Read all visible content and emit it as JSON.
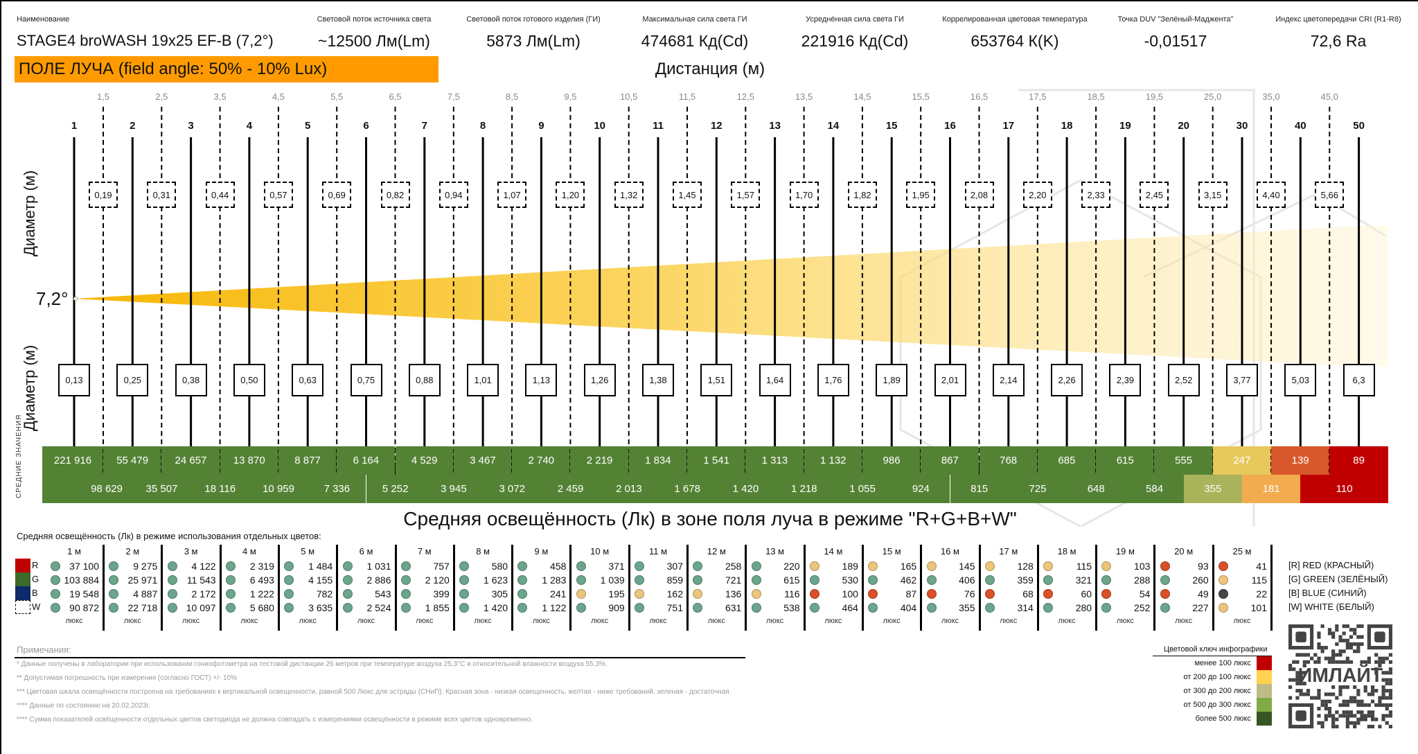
{
  "header": {
    "columns": [
      {
        "label": "Наименование",
        "value": "STAGE4 broWASH 19x25 EF-B (7,2°)"
      },
      {
        "label": "Световой поток источника света",
        "value": "~12500 Лм(Lm)"
      },
      {
        "label": "Световой поток готового изделия (ГИ)",
        "value": "5873 Лм(Lm)"
      },
      {
        "label": "Максимальная сила света ГИ",
        "value": "474681 Кд(Cd)"
      },
      {
        "label": "Усреднённая сила света ГИ",
        "value": "221916 Кд(Cd)"
      },
      {
        "label": "Коррелированная цветовая температура",
        "value": "653764 К(K)"
      },
      {
        "label": "Точка DUV \"Зелёный-Маджента\"",
        "value": "-0,01517"
      },
      {
        "label": "Индекс цветопередачи CRI (R1-R8)",
        "value": "72,6 Ra"
      }
    ]
  },
  "banner": "ПОЛЕ ЛУЧА (field angle: 50% - 10% Lux)",
  "distance_title": "Дистанция (м)",
  "beam_angle": "7,2°",
  "diameter_label": "Диаметр (м)",
  "distances_main": [
    "1",
    "2",
    "3",
    "4",
    "5",
    "6",
    "7",
    "8",
    "9",
    "10",
    "11",
    "12",
    "13",
    "14",
    "15",
    "16",
    "17",
    "18",
    "19",
    "20",
    "30",
    "40",
    "50"
  ],
  "distances_mid": [
    "1,5",
    "2,5",
    "3,5",
    "4,5",
    "5,5",
    "6,5",
    "7,5",
    "8,5",
    "9,5",
    "10,5",
    "11,5",
    "12,5",
    "13,5",
    "14,5",
    "15,5",
    "16,5",
    "17,5",
    "18,5",
    "19,5",
    "25,0",
    "35,0",
    "45,0"
  ],
  "diameters_mid": [
    "0,19",
    "0,31",
    "0,44",
    "0,57",
    "0,69",
    "0,82",
    "0,94",
    "1,07",
    "1,20",
    "1,32",
    "1,45",
    "1,57",
    "1,70",
    "1,82",
    "1,95",
    "2,08",
    "2,20",
    "2,33",
    "2,45",
    "3,15",
    "4,40",
    "5,66"
  ],
  "diameters_main": [
    "0,13",
    "0,25",
    "0,38",
    "0,50",
    "0,63",
    "0,75",
    "0,88",
    "1,01",
    "1,13",
    "1,26",
    "1,38",
    "1,51",
    "1,64",
    "1,76",
    "1,89",
    "2,01",
    "2,14",
    "2,26",
    "2,39",
    "2,52",
    "3,77",
    "5,03",
    "6,3"
  ],
  "avg_label": "СРЕДНИЕ ЗНАЧЕНИЯ",
  "avg_main": [
    "221 916",
    "55 479",
    "24 657",
    "13 870",
    "8 877",
    "6 164",
    "4 529",
    "3 467",
    "2 740",
    "2 219",
    "1 834",
    "1 541",
    "1 313",
    "1 132",
    "986",
    "867",
    "768",
    "685",
    "615",
    "555",
    "247",
    "139",
    "89"
  ],
  "avg_main_colors": [
    "g",
    "g",
    "g",
    "g",
    "g",
    "g",
    "g",
    "g",
    "g",
    "g",
    "g",
    "g",
    "g",
    "g",
    "g",
    "g",
    "g",
    "g",
    "g",
    "g",
    "y",
    "o",
    "r"
  ],
  "avg_mid": [
    "98 629",
    "35 507",
    "18 116",
    "10 959",
    "7 336",
    "5 252",
    "3 945",
    "3 072",
    "2 459",
    "2 013",
    "1 678",
    "1 420",
    "1 218",
    "1 055",
    "924",
    "815",
    "725",
    "648",
    "584",
    "355",
    "181",
    "110"
  ],
  "avg_mid_colors": [
    "g",
    "g",
    "g",
    "g",
    "g",
    "g",
    "g",
    "g",
    "g",
    "g",
    "g",
    "g",
    "g",
    "g",
    "g",
    "g",
    "g",
    "g",
    "g",
    "l",
    "a",
    "r"
  ],
  "bar_colors": {
    "g": "#548235",
    "y": "#e6c85c",
    "o": "#d9582b",
    "r": "#c00000",
    "l": "#a9b35a",
    "a": "#f2ab4f"
  },
  "subtitle": "Средняя освещённость (Лк) в зоне поля луча в режиме \"R+G+B+W\"",
  "table": {
    "title": "Средняя освещённость (Лк) в режиме использования отдельных цветов:",
    "row_keys": [
      "R",
      "G",
      "B",
      "W"
    ],
    "unit": "люкс",
    "dot_colors": {
      "g": "#6aa58c",
      "y": "#ecc47c",
      "r": "#d9502a",
      "d": "#454545"
    },
    "columns": [
      {
        "d": "1 м",
        "v": [
          "37 100",
          "103 884",
          "19 548",
          "90 872"
        ],
        "c": [
          "g",
          "g",
          "g",
          "g"
        ]
      },
      {
        "d": "2 м",
        "v": [
          "9 275",
          "25 971",
          "4 887",
          "22 718"
        ],
        "c": [
          "g",
          "g",
          "g",
          "g"
        ]
      },
      {
        "d": "3 м",
        "v": [
          "4 122",
          "11 543",
          "2 172",
          "10 097"
        ],
        "c": [
          "g",
          "g",
          "g",
          "g"
        ]
      },
      {
        "d": "4 м",
        "v": [
          "2 319",
          "6 493",
          "1 222",
          "5 680"
        ],
        "c": [
          "g",
          "g",
          "g",
          "g"
        ]
      },
      {
        "d": "5 м",
        "v": [
          "1 484",
          "4 155",
          "782",
          "3 635"
        ],
        "c": [
          "g",
          "g",
          "g",
          "g"
        ]
      },
      {
        "d": "6 м",
        "v": [
          "1 031",
          "2 886",
          "543",
          "2 524"
        ],
        "c": [
          "g",
          "g",
          "g",
          "g"
        ]
      },
      {
        "d": "7 м",
        "v": [
          "757",
          "2 120",
          "399",
          "1 855"
        ],
        "c": [
          "g",
          "g",
          "g",
          "g"
        ]
      },
      {
        "d": "8 м",
        "v": [
          "580",
          "1 623",
          "305",
          "1 420"
        ],
        "c": [
          "g",
          "g",
          "g",
          "g"
        ]
      },
      {
        "d": "9 м",
        "v": [
          "458",
          "1 283",
          "241",
          "1 122"
        ],
        "c": [
          "g",
          "g",
          "g",
          "g"
        ]
      },
      {
        "d": "10 м",
        "v": [
          "371",
          "1 039",
          "195",
          "909"
        ],
        "c": [
          "g",
          "g",
          "y",
          "g"
        ]
      },
      {
        "d": "11 м",
        "v": [
          "307",
          "859",
          "162",
          "751"
        ],
        "c": [
          "g",
          "g",
          "y",
          "g"
        ]
      },
      {
        "d": "12 м",
        "v": [
          "258",
          "721",
          "136",
          "631"
        ],
        "c": [
          "g",
          "g",
          "y",
          "g"
        ]
      },
      {
        "d": "13 м",
        "v": [
          "220",
          "615",
          "116",
          "538"
        ],
        "c": [
          "g",
          "g",
          "y",
          "g"
        ]
      },
      {
        "d": "14 м",
        "v": [
          "189",
          "530",
          "100",
          "464"
        ],
        "c": [
          "y",
          "g",
          "r",
          "g"
        ]
      },
      {
        "d": "15 м",
        "v": [
          "165",
          "462",
          "87",
          "404"
        ],
        "c": [
          "y",
          "g",
          "r",
          "g"
        ]
      },
      {
        "d": "16 м",
        "v": [
          "145",
          "406",
          "76",
          "355"
        ],
        "c": [
          "y",
          "g",
          "r",
          "g"
        ]
      },
      {
        "d": "17 м",
        "v": [
          "128",
          "359",
          "68",
          "314"
        ],
        "c": [
          "y",
          "g",
          "r",
          "g"
        ]
      },
      {
        "d": "18 м",
        "v": [
          "115",
          "321",
          "60",
          "280"
        ],
        "c": [
          "y",
          "g",
          "r",
          "g"
        ]
      },
      {
        "d": "19 м",
        "v": [
          "103",
          "288",
          "54",
          "252"
        ],
        "c": [
          "y",
          "g",
          "r",
          "g"
        ]
      },
      {
        "d": "20 м",
        "v": [
          "93",
          "260",
          "49",
          "227"
        ],
        "c": [
          "r",
          "g",
          "r",
          "g"
        ]
      },
      {
        "d": "25 м",
        "v": [
          "41",
          "115",
          "22",
          "101"
        ],
        "c": [
          "r",
          "y",
          "d",
          "y"
        ]
      }
    ],
    "legend": [
      "[R] RED (КРАСНЫЙ)",
      "[G] GREEN (ЗЕЛЁНЫЙ)",
      "[B] BLUE (СИНИЙ)",
      "[W] WHITE (БЕЛЫЙ)"
    ],
    "legend_colors": [
      "#c00000",
      "#3c6a28",
      "#0d2a6b",
      "#ffffff"
    ]
  },
  "notes": {
    "title": "Примечания:",
    "items": [
      "* Данные получены в лаборатории при использовании гониофотометра на тестовой дистанции 26 метров при температуре воздуха 25,3°C и относительной влажности воздуха 55,3%.",
      "** Допустимая погрешность при измерения (согласно ГОСТ) +/- 10%",
      "*** Цветовая шкала освещённости построена на требованиях к вертикальной освещенности, равной 500 Люкс для эстрады (СНиП). Красная зона - низкая освещенность, желтая - ниже требований, зеленая - достаточная.",
      "**** Данные по состоянию на 20.02.2023г.",
      "**** Сумма показателей освёщенности отдельных цветов светодиода не должна совпадать с измерениями освещённости в режиме всех цветов одновременно."
    ]
  },
  "color_key": {
    "title": "Цветовой ключ инфографики",
    "items": [
      {
        "label": "менее 100 люкс",
        "color": "#c00000"
      },
      {
        "label": "от 200 до 100 люкс",
        "color": "#ffd24f"
      },
      {
        "label": "от 300 до 200 люкс",
        "color": "#bfbb86"
      },
      {
        "label": "от 500 до 300 люкс",
        "color": "#7fac45"
      },
      {
        "label": "более 500 люкс",
        "color": "#375623"
      }
    ]
  },
  "qr_logo": "ИМЛАЙТ"
}
